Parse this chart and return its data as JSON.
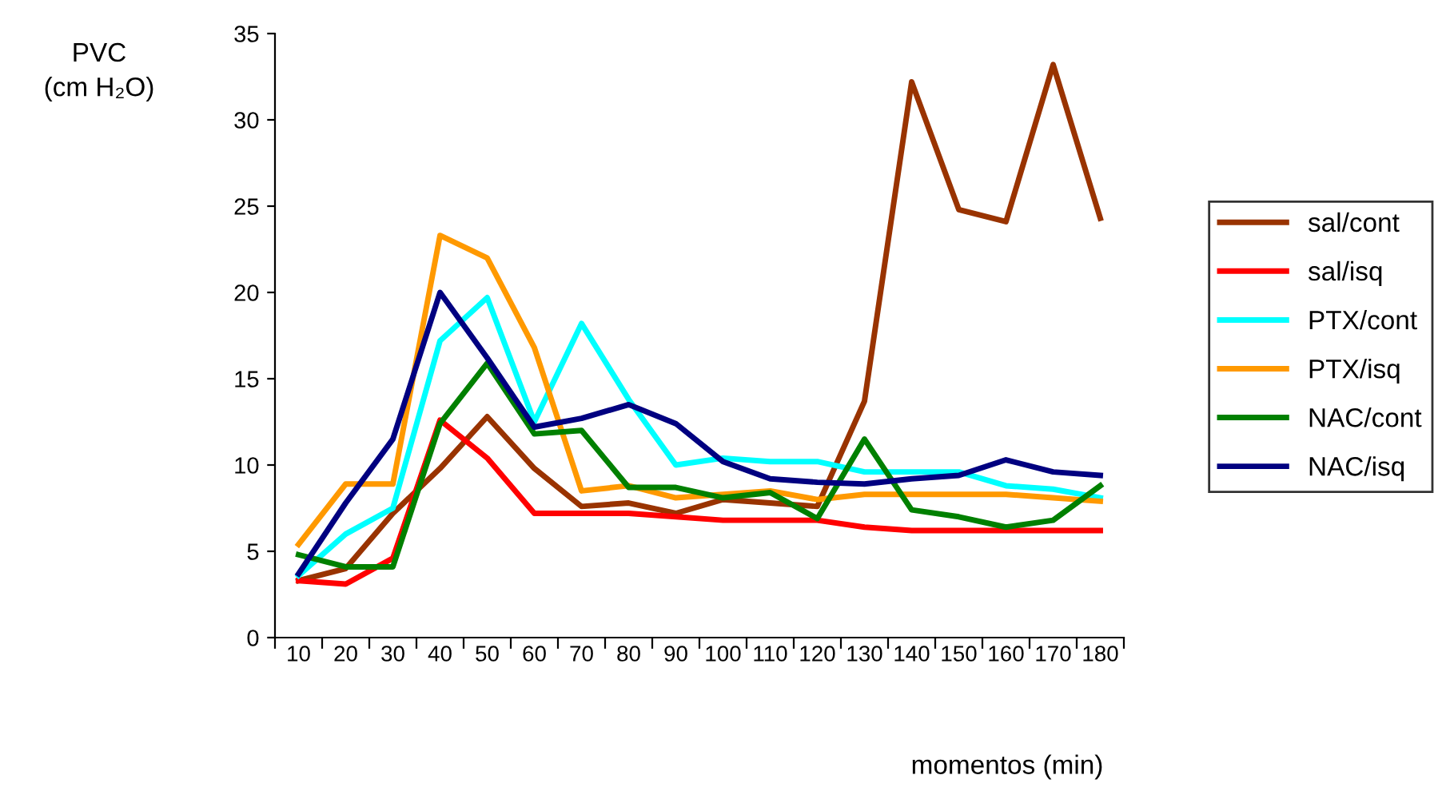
{
  "chart_data": {
    "type": "line",
    "ylabel": "PVC\n(cm H₂O)",
    "xlabel": "momentos (min)",
    "categories": [
      "10",
      "20",
      "30",
      "40",
      "50",
      "60",
      "70",
      "80",
      "90",
      "100",
      "110",
      "120",
      "130",
      "140",
      "150",
      "160",
      "170",
      "180"
    ],
    "series": [
      {
        "name": "sal/cont",
        "color": "#993300",
        "values": [
          3.3,
          4.0,
          7.2,
          9.8,
          12.8,
          9.8,
          7.6,
          7.8,
          7.2,
          8.0,
          7.8,
          7.6,
          13.7,
          32.2,
          24.8,
          24.1,
          33.2,
          24.3
        ]
      },
      {
        "name": "sal/isq",
        "color": "#ff0000",
        "values": [
          3.3,
          3.1,
          4.6,
          12.6,
          10.4,
          7.2,
          7.2,
          7.2,
          7.0,
          6.8,
          6.8,
          6.8,
          6.4,
          6.2,
          6.2,
          6.2,
          6.2,
          6.2
        ]
      },
      {
        "name": "PTX/cont",
        "color": "#00ffff",
        "values": [
          3.6,
          6.0,
          7.5,
          17.2,
          19.7,
          12.5,
          18.2,
          13.8,
          10.0,
          10.4,
          10.2,
          10.2,
          9.6,
          9.6,
          9.6,
          8.8,
          8.6,
          8.1
        ]
      },
      {
        "name": "PTX/isq",
        "color": "#ff9900",
        "values": [
          5.4,
          8.9,
          8.9,
          23.3,
          22.0,
          16.8,
          8.5,
          8.8,
          8.1,
          8.3,
          8.5,
          8.0,
          8.3,
          8.3,
          8.3,
          8.3,
          8.1,
          7.9
        ]
      },
      {
        "name": "NAC/cont",
        "color": "#008000",
        "values": [
          4.8,
          4.1,
          4.1,
          12.4,
          15.9,
          11.8,
          12.0,
          8.7,
          8.7,
          8.1,
          8.4,
          6.9,
          11.5,
          7.4,
          7.0,
          6.4,
          6.8,
          8.8
        ]
      },
      {
        "name": "NAC/isq",
        "color": "#000080",
        "values": [
          3.7,
          7.8,
          11.5,
          20.0,
          16.2,
          12.2,
          12.7,
          13.5,
          12.4,
          10.2,
          9.2,
          9.0,
          8.9,
          9.2,
          9.4,
          10.3,
          9.6,
          9.4
        ]
      }
    ],
    "ylim": [
      0,
      35
    ],
    "yticks": [
      0,
      5,
      10,
      15,
      20,
      25,
      30,
      35
    ],
    "grid": false,
    "legend": "right",
    "marker": "none",
    "line_style": "solid"
  }
}
